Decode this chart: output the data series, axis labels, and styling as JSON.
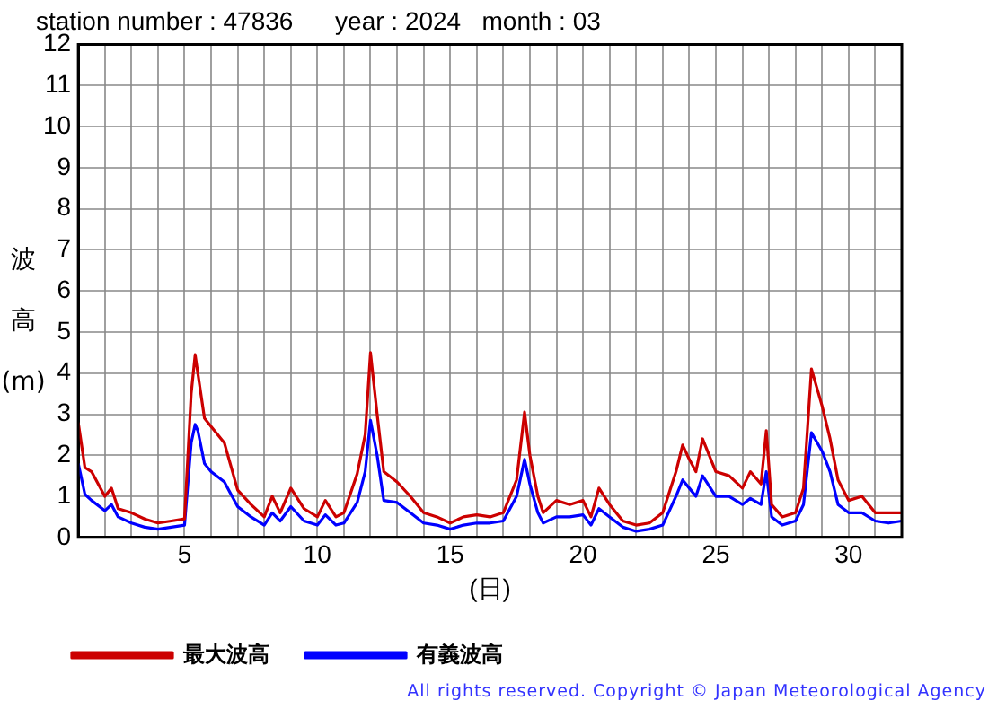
{
  "chart_data": {
    "type": "line",
    "title": "station number : 47836      year : 2024   month : 03",
    "xlabel": "(日)",
    "ylabel": "波高(m)",
    "annotations": [
      "All rights reserved. Copyright © Japan Meteorological Agency"
    ],
    "xlim": [
      1,
      32
    ],
    "ylim": [
      0,
      12
    ],
    "xticks": [
      {
        "value": 2,
        "label": null
      },
      {
        "value": 3,
        "label": null
      },
      {
        "value": 4,
        "label": null
      },
      5,
      {
        "value": 6,
        "label": null
      },
      {
        "value": 7,
        "label": null
      },
      {
        "value": 8,
        "label": null
      },
      {
        "value": 9,
        "label": null
      },
      10,
      {
        "value": 11,
        "label": null
      },
      {
        "value": 12,
        "label": null
      },
      {
        "value": 13,
        "label": null
      },
      {
        "value": 14,
        "label": null
      },
      15,
      {
        "value": 16,
        "label": null
      },
      {
        "value": 17,
        "label": null
      },
      {
        "value": 18,
        "label": null
      },
      {
        "value": 19,
        "label": null
      },
      20,
      {
        "value": 21,
        "label": null
      },
      {
        "value": 22,
        "label": null
      },
      {
        "value": 23,
        "label": null
      },
      {
        "value": 24,
        "label": null
      },
      25,
      {
        "value": 26,
        "label": null
      },
      {
        "value": 27,
        "label": null
      },
      {
        "value": 28,
        "label": null
      },
      {
        "value": 29,
        "label": null
      },
      30,
      {
        "value": 31,
        "label": null
      }
    ],
    "yticks": [
      0,
      1,
      2,
      3,
      4,
      5,
      6,
      7,
      8,
      9,
      10,
      11,
      12
    ],
    "grid": true,
    "legend": "bottom",
    "marker": "none",
    "line_style": "solid",
    "x": [
      1,
      1.25,
      1.5,
      2,
      2.25,
      2.5,
      3,
      3.5,
      4,
      4.5,
      5,
      5.25,
      5.4,
      5.5,
      5.75,
      6,
      6.5,
      7,
      7.5,
      8,
      8.3,
      8.6,
      9,
      9.5,
      10,
      10.3,
      10.7,
      11,
      11.5,
      11.8,
      12,
      12.25,
      12.5,
      13,
      13.5,
      14,
      14.5,
      15,
      15.5,
      16,
      16.5,
      17,
      17.5,
      17.8,
      18,
      18.3,
      18.5,
      19,
      19.5,
      20,
      20.3,
      20.6,
      21,
      21.5,
      22,
      22.5,
      23,
      23.5,
      23.75,
      24,
      24.25,
      24.5,
      25,
      25.5,
      26,
      26.3,
      26.7,
      26.9,
      27.1,
      27.5,
      28,
      28.3,
      28.6,
      29,
      29.3,
      29.6,
      30,
      30.5,
      31,
      31.5,
      32
    ],
    "series": [
      {
        "name": "最大波高",
        "color": "#cc0000",
        "values": [
          2.8,
          1.7,
          1.6,
          1.0,
          1.2,
          0.7,
          0.6,
          0.45,
          0.35,
          0.4,
          0.45,
          3.5,
          4.45,
          4.0,
          2.9,
          2.7,
          2.3,
          1.15,
          0.8,
          0.5,
          1.0,
          0.6,
          1.2,
          0.7,
          0.5,
          0.9,
          0.5,
          0.6,
          1.55,
          2.5,
          4.5,
          3.0,
          1.6,
          1.35,
          1.0,
          0.6,
          0.5,
          0.35,
          0.5,
          0.55,
          0.5,
          0.6,
          1.4,
          3.05,
          2.0,
          1.0,
          0.6,
          0.9,
          0.8,
          0.9,
          0.5,
          1.2,
          0.8,
          0.4,
          0.3,
          0.35,
          0.6,
          1.6,
          2.25,
          1.9,
          1.6,
          2.4,
          1.6,
          1.5,
          1.2,
          1.6,
          1.3,
          2.6,
          0.8,
          0.5,
          0.6,
          1.2,
          4.1,
          3.2,
          2.4,
          1.4,
          0.9,
          1.0,
          0.6,
          0.6,
          0.6
        ]
      },
      {
        "name": "有義波高",
        "color": "#0000ff",
        "values": [
          1.8,
          1.05,
          0.9,
          0.65,
          0.8,
          0.5,
          0.35,
          0.25,
          0.2,
          0.25,
          0.3,
          2.3,
          2.75,
          2.6,
          1.8,
          1.6,
          1.35,
          0.75,
          0.5,
          0.3,
          0.6,
          0.4,
          0.75,
          0.4,
          0.3,
          0.55,
          0.3,
          0.35,
          0.85,
          1.6,
          2.85,
          2.0,
          0.9,
          0.85,
          0.6,
          0.35,
          0.3,
          0.2,
          0.3,
          0.35,
          0.35,
          0.4,
          1.0,
          1.9,
          1.3,
          0.6,
          0.35,
          0.5,
          0.5,
          0.55,
          0.3,
          0.7,
          0.5,
          0.25,
          0.15,
          0.2,
          0.3,
          1.0,
          1.4,
          1.2,
          1.0,
          1.5,
          1.0,
          1.0,
          0.8,
          0.95,
          0.8,
          1.6,
          0.5,
          0.3,
          0.4,
          0.8,
          2.55,
          2.1,
          1.6,
          0.8,
          0.6,
          0.6,
          0.4,
          0.35,
          0.4
        ]
      }
    ]
  }
}
